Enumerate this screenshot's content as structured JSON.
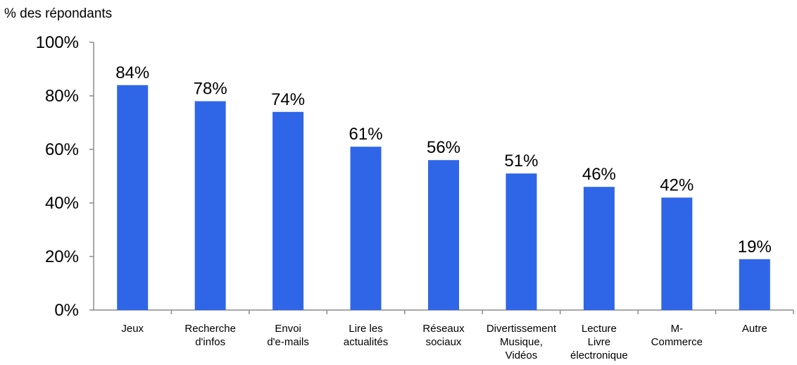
{
  "chart_data": {
    "type": "bar",
    "ylabel": "% des répondants",
    "categories": [
      [
        "Jeux"
      ],
      [
        "Recherche",
        "d'infos"
      ],
      [
        "Envoi",
        "d'e-mails"
      ],
      [
        "Lire les",
        "actualités"
      ],
      [
        "Réseaux",
        "sociaux"
      ],
      [
        "Divertissement",
        "Musique,",
        "Vidéos"
      ],
      [
        "Lecture",
        "Livre",
        "électronique"
      ],
      [
        "M-",
        "Commerce"
      ],
      [
        "Autre"
      ]
    ],
    "values": [
      84,
      78,
      74,
      61,
      56,
      51,
      46,
      42,
      19
    ],
    "value_labels": [
      "84%",
      "78%",
      "74%",
      "61%",
      "56%",
      "51%",
      "46%",
      "42%",
      "19%"
    ],
    "yticks": [
      {
        "value": 0,
        "label": "0%"
      },
      {
        "value": 20,
        "label": "20%"
      },
      {
        "value": 40,
        "label": "40%"
      },
      {
        "value": 60,
        "label": "60%"
      },
      {
        "value": 80,
        "label": "80%"
      },
      {
        "value": 100,
        "label": "100%"
      }
    ],
    "ylim": [
      0,
      100
    ],
    "grid": false,
    "legend": "none",
    "bar_color": "#2f66e8",
    "axis_color": "#8c8c8c"
  }
}
